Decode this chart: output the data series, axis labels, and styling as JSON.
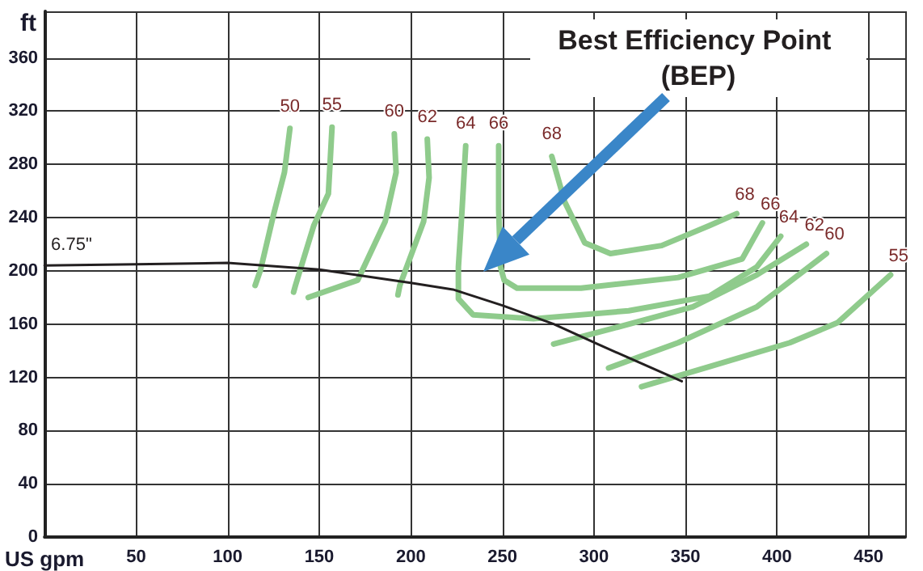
{
  "chart_data": {
    "type": "line",
    "xlabel": "US gpm",
    "ylabel": "ft",
    "xlim": [
      0,
      470
    ],
    "ylim": [
      0,
      395
    ],
    "xticks": [
      50,
      100,
      150,
      200,
      250,
      300,
      350,
      400,
      450
    ],
    "yticks": [
      0,
      40,
      80,
      120,
      160,
      200,
      240,
      280,
      320,
      360
    ],
    "grid": true,
    "marker": "none",
    "line_style": "solid",
    "annotations": [
      "Best Efficiency Point (BEP)"
    ],
    "series": [
      {
        "name": "6.75\"",
        "color": "#231f20",
        "x": [
          0,
          50,
          100,
          150,
          200,
          223,
          250,
          278,
          302,
          325,
          348
        ],
        "values": [
          204,
          205,
          206,
          201,
          191,
          186,
          174,
          160,
          145,
          131,
          117
        ]
      },
      {
        "name": "50",
        "color": "#8fcb8c",
        "x": [
          134,
          131,
          125,
          118,
          115
        ],
        "values": [
          307,
          274,
          242,
          201,
          189
        ]
      },
      {
        "name": "55",
        "color": "#8fcb8c",
        "x": [
          157,
          155,
          147,
          137,
          136
        ],
        "values": [
          308,
          258,
          234,
          189,
          184
        ]
      },
      {
        "name": "60",
        "color": "#8fcb8c",
        "x": [
          191,
          192,
          186,
          171,
          144
        ],
        "values": [
          303,
          274,
          237,
          193,
          180
        ]
      },
      {
        "name": "62",
        "color": "#8fcb8c",
        "x": [
          209,
          210,
          207,
          194,
          193
        ],
        "values": [
          299,
          270,
          237,
          189,
          182
        ]
      },
      {
        "name": "64",
        "color": "#8fcb8c",
        "x": [
          230,
          228,
          226,
          226,
          234,
          267,
          319,
          363,
          389,
          402
        ],
        "values": [
          294,
          246,
          203,
          179,
          167,
          164,
          170,
          181,
          203,
          226
        ]
      },
      {
        "name": "66",
        "color": "#8fcb8c",
        "x": [
          248,
          248,
          249,
          251,
          258,
          293,
          346,
          381,
          392
        ],
        "values": [
          294,
          246,
          203,
          193,
          187,
          187,
          195,
          209,
          236
        ]
      },
      {
        "name": "68",
        "color": "#8fcb8c",
        "x": [
          277,
          284,
          295,
          309,
          337,
          363,
          378
        ],
        "values": [
          286,
          252,
          221,
          213,
          219,
          234,
          243
        ]
      },
      {
        "name": "62",
        "color": "#8fcb8c",
        "x": [
          278,
          311,
          354,
          389,
          416
        ],
        "values": [
          145,
          157,
          173,
          197,
          220
        ]
      },
      {
        "name": "60",
        "color": "#8fcb8c",
        "x": [
          308,
          346,
          389,
          427
        ],
        "values": [
          127,
          146,
          173,
          213
        ]
      },
      {
        "name": "55",
        "color": "#8fcb8c",
        "x": [
          326,
          363,
          407,
          433,
          462
        ],
        "values": [
          113,
          128,
          146,
          161,
          197
        ]
      }
    ]
  }
}
